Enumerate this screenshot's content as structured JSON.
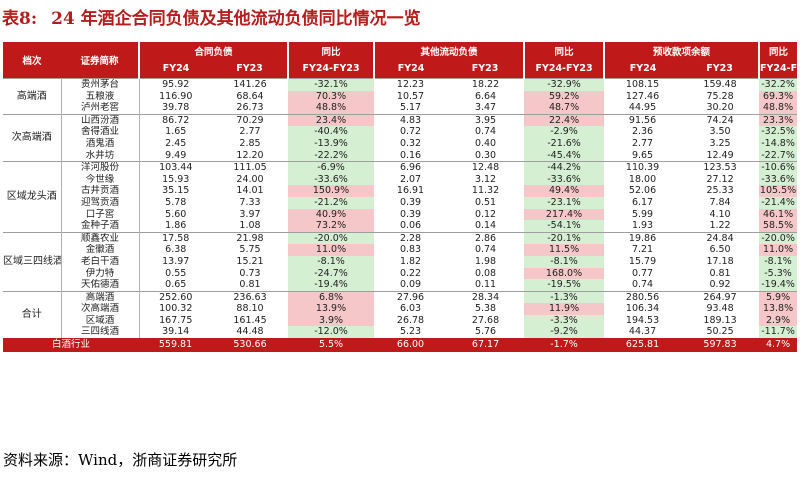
{
  "title": {
    "num": "表8:",
    "text": "24 年酒企合同负债及其他流动负债同比情况一览"
  },
  "header": {
    "col_tier": "档次",
    "col_name": "证券简称",
    "groups": [
      "合同负债",
      "同比",
      "其他流动负债",
      "同比",
      "预收款项余额",
      "同比"
    ],
    "sub": [
      "FY24",
      "FY23",
      "FY24-FY23",
      "FY24",
      "FY23",
      "FY24-FY23",
      "FY24",
      "FY23",
      "FY24-FY23"
    ]
  },
  "groups": [
    {
      "label": "高端酒",
      "rows": [
        {
          "name": "贵州茅台",
          "v": [
            "95.92",
            "141.26",
            "-32.1%",
            "12.23",
            "18.22",
            "-32.9%",
            "108.15",
            "159.48",
            "-32.2%"
          ]
        },
        {
          "name": "五粮液",
          "v": [
            "116.90",
            "68.64",
            "70.3%",
            "10.57",
            "6.64",
            "59.2%",
            "127.46",
            "75.28",
            "69.3%"
          ]
        },
        {
          "name": "泸州老窖",
          "v": [
            "39.78",
            "26.73",
            "48.8%",
            "5.17",
            "3.47",
            "48.7%",
            "44.95",
            "30.20",
            "48.8%"
          ]
        }
      ]
    },
    {
      "label": "次高端酒",
      "rows": [
        {
          "name": "山西汾酒",
          "v": [
            "86.72",
            "70.29",
            "23.4%",
            "4.83",
            "3.95",
            "22.4%",
            "91.56",
            "74.24",
            "23.3%"
          ]
        },
        {
          "name": "舍得酒业",
          "v": [
            "1.65",
            "2.77",
            "-40.4%",
            "0.72",
            "0.74",
            "-2.9%",
            "2.36",
            "3.50",
            "-32.5%"
          ]
        },
        {
          "name": "酒鬼酒",
          "v": [
            "2.45",
            "2.85",
            "-13.9%",
            "0.32",
            "0.40",
            "-21.6%",
            "2.77",
            "3.25",
            "-14.8%"
          ]
        },
        {
          "name": "水井坊",
          "v": [
            "9.49",
            "12.20",
            "-22.2%",
            "0.16",
            "0.30",
            "-45.4%",
            "9.65",
            "12.49",
            "-22.7%"
          ]
        }
      ]
    },
    {
      "label": "区域龙头酒",
      "rows": [
        {
          "name": "洋河股份",
          "v": [
            "103.44",
            "111.05",
            "-6.9%",
            "6.96",
            "12.48",
            "-44.2%",
            "110.39",
            "123.53",
            "-10.6%"
          ]
        },
        {
          "name": "今世缘",
          "v": [
            "15.93",
            "24.00",
            "-33.6%",
            "2.07",
            "3.12",
            "-33.6%",
            "18.00",
            "27.12",
            "-33.6%"
          ]
        },
        {
          "name": "古井贡酒",
          "v": [
            "35.15",
            "14.01",
            "150.9%",
            "16.91",
            "11.32",
            "49.4%",
            "52.06",
            "25.33",
            "105.5%"
          ]
        },
        {
          "name": "迎驾贡酒",
          "v": [
            "5.78",
            "7.33",
            "-21.2%",
            "0.39",
            "0.51",
            "-23.1%",
            "6.17",
            "7.84",
            "-21.4%"
          ]
        },
        {
          "name": "口子窖",
          "v": [
            "5.60",
            "3.97",
            "40.9%",
            "0.39",
            "0.12",
            "217.4%",
            "5.99",
            "4.10",
            "46.1%"
          ]
        },
        {
          "name": "金种子酒",
          "v": [
            "1.86",
            "1.08",
            "73.2%",
            "0.06",
            "0.14",
            "-54.1%",
            "1.93",
            "1.22",
            "58.5%"
          ]
        }
      ]
    },
    {
      "label": "区域三四线酒",
      "rows": [
        {
          "name": "顺鑫农业",
          "v": [
            "17.58",
            "21.98",
            "-20.0%",
            "2.28",
            "2.86",
            "-20.1%",
            "19.86",
            "24.84",
            "-20.0%"
          ]
        },
        {
          "name": "金徽酒",
          "v": [
            "6.38",
            "5.75",
            "11.0%",
            "0.83",
            "0.74",
            "11.5%",
            "7.21",
            "6.50",
            "11.0%"
          ]
        },
        {
          "name": "老白干酒",
          "v": [
            "13.97",
            "15.21",
            "-8.1%",
            "1.82",
            "1.98",
            "-8.1%",
            "15.79",
            "17.18",
            "-8.1%"
          ]
        },
        {
          "name": "伊力特",
          "v": [
            "0.55",
            "0.73",
            "-24.7%",
            "0.22",
            "0.08",
            "168.0%",
            "0.77",
            "0.81",
            "-5.3%"
          ]
        },
        {
          "name": "天佑德酒",
          "v": [
            "0.65",
            "0.81",
            "-19.4%",
            "0.09",
            "0.11",
            "-19.5%",
            "0.74",
            "0.92",
            "-19.4%"
          ]
        }
      ]
    },
    {
      "label": "合计",
      "rows": [
        {
          "name": "高端酒",
          "v": [
            "252.60",
            "236.63",
            "6.8%",
            "27.96",
            "28.34",
            "-1.3%",
            "280.56",
            "264.97",
            "5.9%"
          ]
        },
        {
          "name": "次高端酒",
          "v": [
            "100.32",
            "88.10",
            "13.9%",
            "6.03",
            "5.38",
            "11.9%",
            "106.34",
            "93.48",
            "13.8%"
          ]
        },
        {
          "name": "区域酒",
          "v": [
            "167.75",
            "161.45",
            "3.9%",
            "26.78",
            "27.68",
            "-3.3%",
            "194.53",
            "189.13",
            "2.9%"
          ]
        },
        {
          "name": "三四线酒",
          "v": [
            "39.14",
            "44.48",
            "-12.0%",
            "5.23",
            "5.76",
            "-9.2%",
            "44.37",
            "50.25",
            "-11.7%"
          ]
        }
      ]
    }
  ],
  "footer": {
    "name": "白酒行业",
    "v": [
      "559.81",
      "530.66",
      "5.5%",
      "66.00",
      "67.17",
      "-1.7%",
      "625.81",
      "597.83",
      "4.7%"
    ]
  },
  "source": "资料来源：Wind，浙商证券研究所"
}
